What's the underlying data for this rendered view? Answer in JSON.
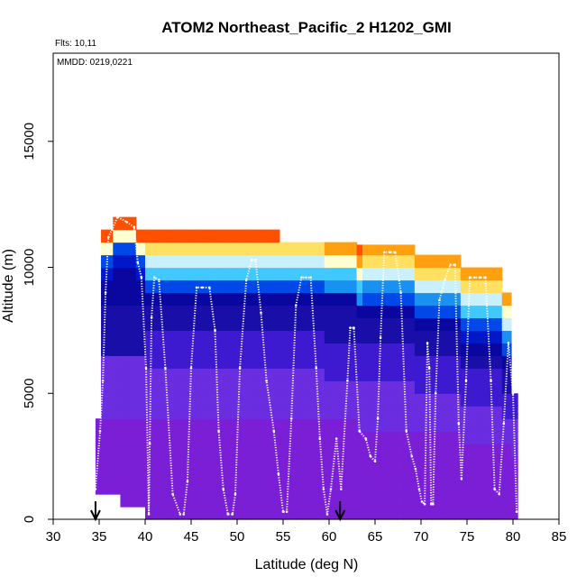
{
  "chart_data": {
    "type": "heatmap",
    "title": "ATOM2 Northeast_Pacific_2 H1202_GMI",
    "annotations": {
      "flights": "Flts: 10,11",
      "dates": "MMDD: 0219,0221"
    },
    "xlabel": "Latitude (deg N)",
    "ylabel": "Altitude (m)",
    "xlim": [
      30,
      85
    ],
    "ylim": [
      0,
      18500
    ],
    "xticks": [
      "30",
      "35",
      "40",
      "45",
      "50",
      "55",
      "60",
      "65",
      "70",
      "75",
      "80",
      "85"
    ],
    "xtick_values": [
      30,
      35,
      40,
      45,
      50,
      55,
      60,
      65,
      70,
      75,
      80,
      85
    ],
    "yticks": [
      "0",
      "5000",
      "10000",
      "15000"
    ],
    "ytick_values": [
      0,
      5000,
      10000,
      15000
    ],
    "grid": false,
    "colormap": [
      "#7a1fd6",
      "#6b2de0",
      "#3d1ad0",
      "#1a0ea8",
      "#0a06a0",
      "#0018c8",
      "#0048e8",
      "#1a90f0",
      "#40c8ff",
      "#c8f0ff",
      "#ffffd0",
      "#ffe060",
      "#ffa010",
      "#ff5000",
      "#e01010",
      "#a00000"
    ],
    "columns": [
      {
        "x0": 34.6,
        "x1": 35.2,
        "ybot": 1000,
        "top": 4000,
        "trop": null
      },
      {
        "x0": 35.2,
        "x1": 35.8,
        "ybot": 1000,
        "top": 11500,
        "trop": null
      },
      {
        "x0": 35.8,
        "x1": 36.5,
        "ybot": 1000,
        "top": 11500,
        "trop": null
      },
      {
        "x0": 36.5,
        "x1": 37.3,
        "ybot": 1000,
        "top": 12000,
        "trop": null
      },
      {
        "x0": 37.3,
        "x1": 38.2,
        "ybot": 500,
        "top": 12000,
        "trop": null
      },
      {
        "x0": 38.2,
        "x1": 39.0,
        "ybot": 500,
        "top": 12000,
        "trop": null
      },
      {
        "x0": 39.0,
        "x1": 40.0,
        "ybot": 500,
        "top": 11500,
        "trop": null
      },
      {
        "x0": 40.0,
        "x1": 54.6,
        "ybot": 0,
        "top": 11500,
        "trop": 9000
      },
      {
        "x0": 54.6,
        "x1": 59.5,
        "ybot": 0,
        "top": 11000,
        "trop": 9000
      },
      {
        "x0": 59.5,
        "x1": 63.0,
        "ybot": 0,
        "top": 11000,
        "trop": 8800
      },
      {
        "x0": 63.0,
        "x1": 69.3,
        "ybot": 0,
        "top": 10900,
        "trop": 8300
      },
      {
        "x0": 69.3,
        "x1": 74.3,
        "ybot": 0,
        "top": 10500,
        "trop": 7800
      },
      {
        "x0": 74.3,
        "x1": 78.8,
        "ybot": 0,
        "top": 10000,
        "trop": 7200
      },
      {
        "x0": 78.8,
        "x1": 79.8,
        "ybot": 0,
        "top": 9000,
        "trop": 6400
      },
      {
        "x0": 79.8,
        "x1": 80.5,
        "ybot": 0,
        "top": 5000,
        "trop": 6000
      }
    ],
    "series": [
      {
        "x": [
          34.6,
          35.1,
          35.4,
          35.7,
          36.0,
          36.4,
          37.0,
          38.0,
          38.8,
          39.2,
          39.6,
          40.1,
          40.4,
          40.5,
          40.7,
          41.0,
          41.5,
          42.2,
          43.0,
          43.8,
          44.2,
          44.6,
          45.0,
          45.6,
          46.2,
          47.0,
          47.6,
          48.0,
          48.5,
          49.0,
          49.5,
          49.8,
          50.3,
          51.0,
          51.6,
          52.0,
          52.6,
          53.2,
          54.0,
          54.5,
          55.0,
          55.4,
          55.9,
          56.4,
          57.0,
          57.5,
          58.0,
          58.6,
          59.0,
          59.4,
          59.8,
          60.2,
          60.8,
          61.3,
          62.0,
          62.3,
          62.7,
          63.3,
          64.0,
          64.5,
          65.0,
          65.3,
          65.6,
          66.0,
          66.6,
          67.2,
          67.8,
          68.4,
          69.0,
          69.4,
          69.8,
          70.1,
          70.4,
          70.7,
          70.9,
          71.1,
          71.3,
          71.6,
          72.0,
          72.6,
          73.2,
          73.7,
          74.1,
          74.4,
          74.9,
          75.3,
          75.8,
          76.4,
          77.0,
          77.6,
          78.0,
          78.5,
          79.0,
          79.5,
          80.0,
          80.4
        ],
        "y": [
          1200,
          3500,
          5500,
          9000,
          11200,
          11500,
          12000,
          11800,
          11600,
          10200,
          9600,
          6000,
          200,
          3000,
          8000,
          9600,
          9500,
          6000,
          1000,
          200,
          200,
          1500,
          6000,
          9200,
          9200,
          9200,
          7500,
          3500,
          1200,
          200,
          200,
          1000,
          6000,
          9500,
          10300,
          10300,
          8200,
          5500,
          3500,
          1800,
          300,
          300,
          4000,
          8500,
          9600,
          9600,
          9600,
          6000,
          3200,
          1200,
          200,
          1200,
          3200,
          1200,
          5500,
          7600,
          7600,
          3500,
          3200,
          2500,
          2300,
          4000,
          7200,
          10600,
          10600,
          10600,
          9000,
          3500,
          2500,
          2000,
          1200,
          700,
          600,
          7000,
          6000,
          600,
          600,
          5000,
          8700,
          9500,
          10100,
          10100,
          3800,
          1600,
          5500,
          9600,
          9600,
          9600,
          9600,
          5500,
          1200,
          1000,
          3800,
          7000,
          5000,
          300
        ]
      }
    ],
    "markers": [
      34.6,
      61.2
    ]
  }
}
